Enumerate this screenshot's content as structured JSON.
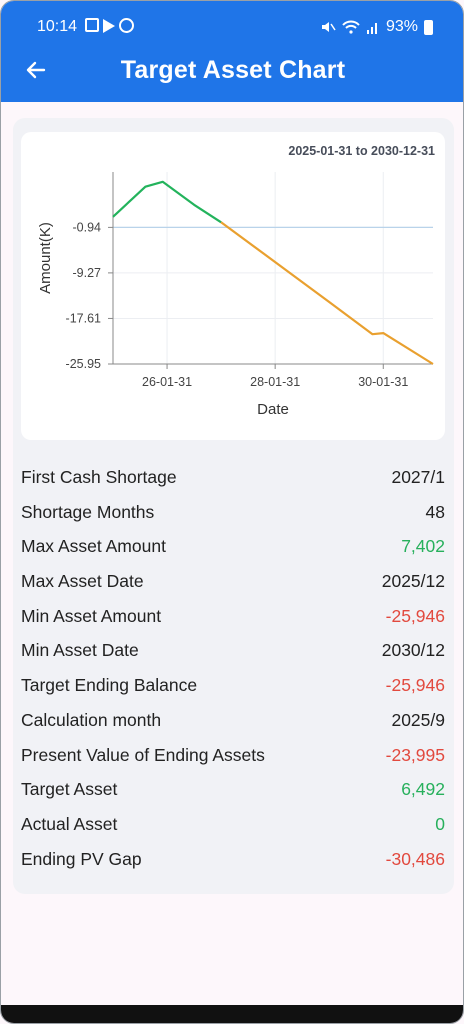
{
  "status": {
    "time": "10:14",
    "battery": "93%"
  },
  "header": {
    "title": "Target Asset Chart"
  },
  "chart_data": {
    "type": "line",
    "range_label": "2025-01-31 to 2030-12-31",
    "xlabel": "Date",
    "ylabel": "Amount(K)",
    "y_ticks": [
      "-0.94",
      "-9.27",
      "-17.61",
      "-25.95"
    ],
    "x_ticks": [
      "26-01-31",
      "28-01-31",
      "30-01-31"
    ],
    "reference_y": -0.94,
    "series": [
      {
        "color": "#23b35c",
        "x": [
          2025.0,
          2025.6,
          2025.92,
          2026.5,
          2027.0
        ],
        "y": [
          1.0,
          6.5,
          7.4,
          3.2,
          0.0
        ]
      },
      {
        "color": "#e9a02f",
        "x": [
          2027.0,
          2028.0,
          2029.0,
          2029.8,
          2030.0,
          2030.92
        ],
        "y": [
          0.0,
          -7.3,
          -14.6,
          -20.5,
          -20.3,
          -25.95
        ]
      }
    ]
  },
  "summary": [
    {
      "label": "First Cash Shortage",
      "value": "2027/1",
      "tone": ""
    },
    {
      "label": "Shortage Months",
      "value": "48",
      "tone": ""
    },
    {
      "label": "Max Asset Amount",
      "value": "7,402",
      "tone": "pos"
    },
    {
      "label": "Max Asset Date",
      "value": "2025/12",
      "tone": ""
    },
    {
      "label": "Min Asset Amount",
      "value": "-25,946",
      "tone": "neg"
    },
    {
      "label": "Min Asset Date",
      "value": "2030/12",
      "tone": ""
    },
    {
      "label": "Target Ending Balance",
      "value": "-25,946",
      "tone": "neg"
    },
    {
      "label": "Calculation month",
      "value": "2025/9",
      "tone": ""
    },
    {
      "label": "Present Value of Ending Assets",
      "value": "-23,995",
      "tone": "neg"
    },
    {
      "label": "Target Asset",
      "value": "6,492",
      "tone": "pos"
    },
    {
      "label": "Actual Asset",
      "value": "0",
      "tone": "pos"
    },
    {
      "label": "Ending PV Gap",
      "value": "-30,486",
      "tone": "neg"
    }
  ]
}
